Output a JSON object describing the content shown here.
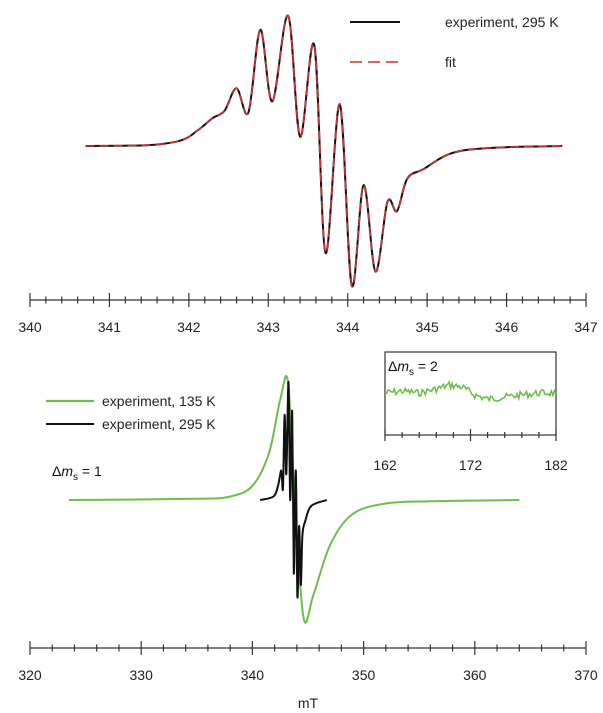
{
  "chart_data": [
    {
      "type": "line",
      "panel": "top",
      "xlim": [
        340,
        347
      ],
      "xticks": [
        "340",
        "341",
        "342",
        "343",
        "344",
        "345",
        "346",
        "347"
      ],
      "legend_position": "top-right",
      "series": [
        {
          "name": "experiment, 295 K",
          "color": "#111111",
          "x": [
            340.7,
            341.5,
            341.9,
            342.1,
            342.3,
            342.45,
            342.6,
            342.75,
            342.9,
            343.05,
            343.25,
            343.4,
            343.58,
            343.72,
            343.9,
            344.05,
            344.2,
            344.35,
            344.5,
            344.62,
            344.75,
            344.95,
            345.3,
            345.8,
            346.7
          ],
          "y": [
            0.0,
            0.01,
            0.06,
            0.16,
            0.3,
            0.38,
            0.62,
            0.36,
            1.25,
            0.48,
            1.4,
            0.1,
            1.08,
            -1.15,
            0.45,
            -1.5,
            -0.42,
            -1.35,
            -0.6,
            -0.7,
            -0.35,
            -0.25,
            -0.08,
            -0.02,
            0.0
          ]
        },
        {
          "name": "fit",
          "color": "#d32f2f",
          "dashed": true,
          "x": [
            340.7,
            341.5,
            341.9,
            342.1,
            342.3,
            342.45,
            342.6,
            342.75,
            342.9,
            343.05,
            343.25,
            343.4,
            343.58,
            343.72,
            343.9,
            344.05,
            344.2,
            344.35,
            344.5,
            344.62,
            344.75,
            344.95,
            345.3,
            345.8,
            346.7
          ],
          "y": [
            0.0,
            0.01,
            0.06,
            0.16,
            0.3,
            0.38,
            0.62,
            0.36,
            1.25,
            0.48,
            1.4,
            0.1,
            1.08,
            -1.15,
            0.45,
            -1.5,
            -0.42,
            -1.35,
            -0.6,
            -0.7,
            -0.35,
            -0.25,
            -0.08,
            -0.02,
            0.0
          ]
        }
      ]
    },
    {
      "type": "line",
      "panel": "bottom",
      "xlim": [
        320,
        370
      ],
      "xlabel": "mT",
      "xticks": [
        "320",
        "330",
        "340",
        "350",
        "360",
        "370"
      ],
      "legend_position": "top-left",
      "annotation": {
        "prefix": "Δ",
        "var": "m",
        "sub": "s",
        "suffix": " = 1"
      },
      "series": [
        {
          "name": "experiment, 135 K",
          "color": "#6cc04a",
          "x": [
            323.5,
            335,
            338,
            340,
            341.5,
            342.5,
            343.2,
            343.8,
            344.6,
            345.5,
            347,
            349,
            352,
            356,
            364
          ],
          "y": [
            0.0,
            0.01,
            0.03,
            0.12,
            0.4,
            0.85,
            1.0,
            0.0,
            -1.0,
            -0.8,
            -0.38,
            -0.12,
            -0.03,
            -0.01,
            0.0
          ]
        },
        {
          "name": "experiment, 295 K",
          "color": "#111111",
          "x": [
            340.7,
            341.9,
            342.3,
            342.6,
            342.75,
            342.9,
            343.05,
            343.25,
            343.4,
            343.58,
            343.72,
            343.9,
            344.05,
            344.2,
            344.35,
            344.5,
            344.75,
            345.3,
            346.7
          ],
          "y": [
            0.0,
            0.03,
            0.12,
            0.25,
            0.1,
            0.72,
            0.22,
            1.0,
            0.0,
            0.75,
            -0.62,
            0.25,
            -0.82,
            -0.22,
            -0.72,
            -0.3,
            -0.18,
            -0.05,
            0.0
          ]
        }
      ]
    },
    {
      "type": "line",
      "panel": "inset",
      "xlim": [
        162,
        182
      ],
      "xticks": [
        "162",
        "172",
        "182"
      ],
      "annotation": {
        "prefix": "Δ",
        "var": "m",
        "sub": "s",
        "suffix": " = 2"
      },
      "series": [
        {
          "color": "#6cc04a",
          "x": [
            162,
            164,
            166,
            168,
            169.5,
            171,
            172.5,
            174,
            176,
            178,
            180,
            182
          ],
          "y": [
            0.0,
            0.05,
            0.0,
            0.1,
            0.2,
            0.15,
            -0.05,
            -0.15,
            -0.1,
            -0.05,
            0.0,
            0.0
          ]
        }
      ]
    }
  ]
}
